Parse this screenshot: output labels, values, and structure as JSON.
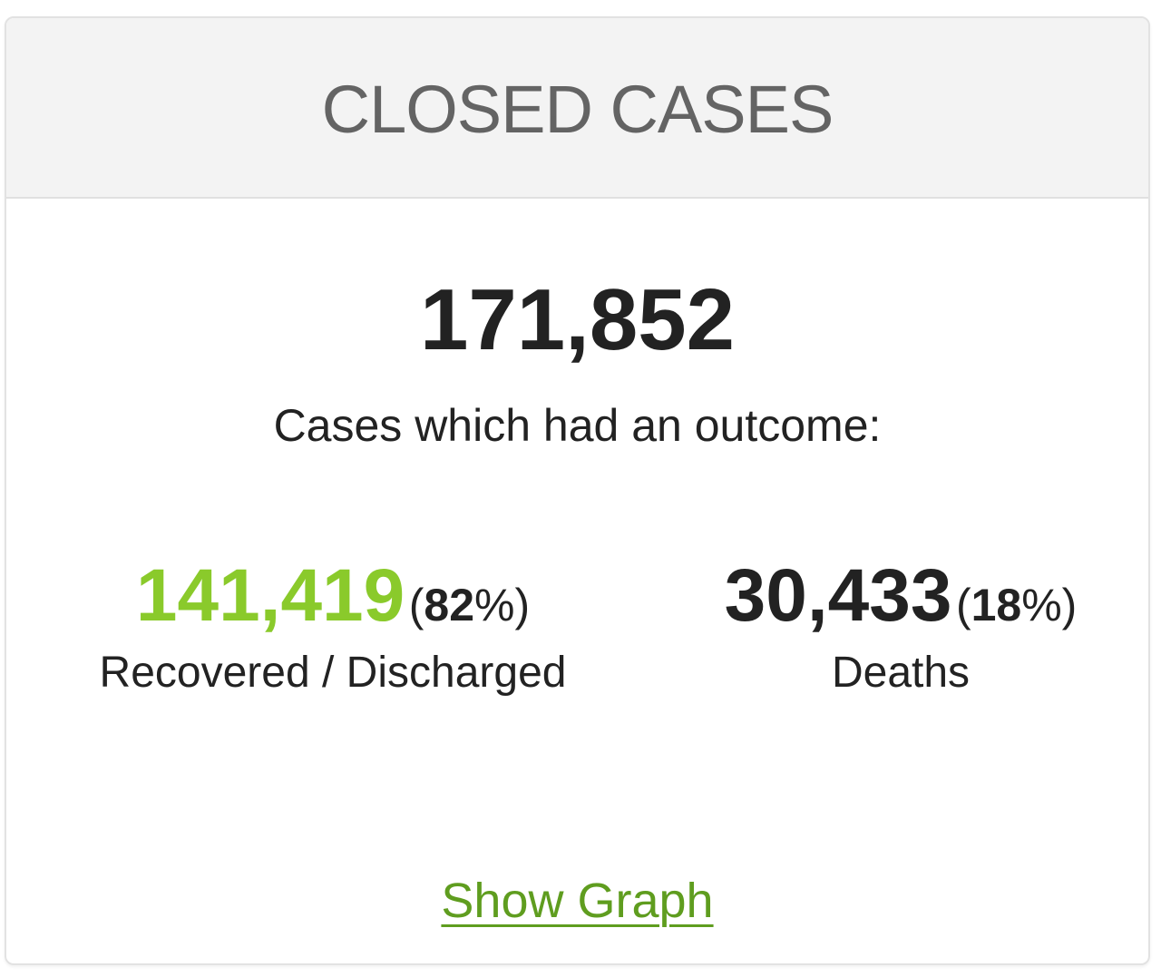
{
  "header": {
    "title": "CLOSED CASES"
  },
  "summary": {
    "total": "171,852",
    "caption": "Cases which had an outcome:"
  },
  "outcomes": [
    {
      "value": "141,419",
      "percent": "(82%)",
      "label": "Recovered / Discharged"
    },
    {
      "value": "30,433",
      "percent": "(18%)",
      "label": "Deaths"
    }
  ],
  "link": "Show Graph"
}
